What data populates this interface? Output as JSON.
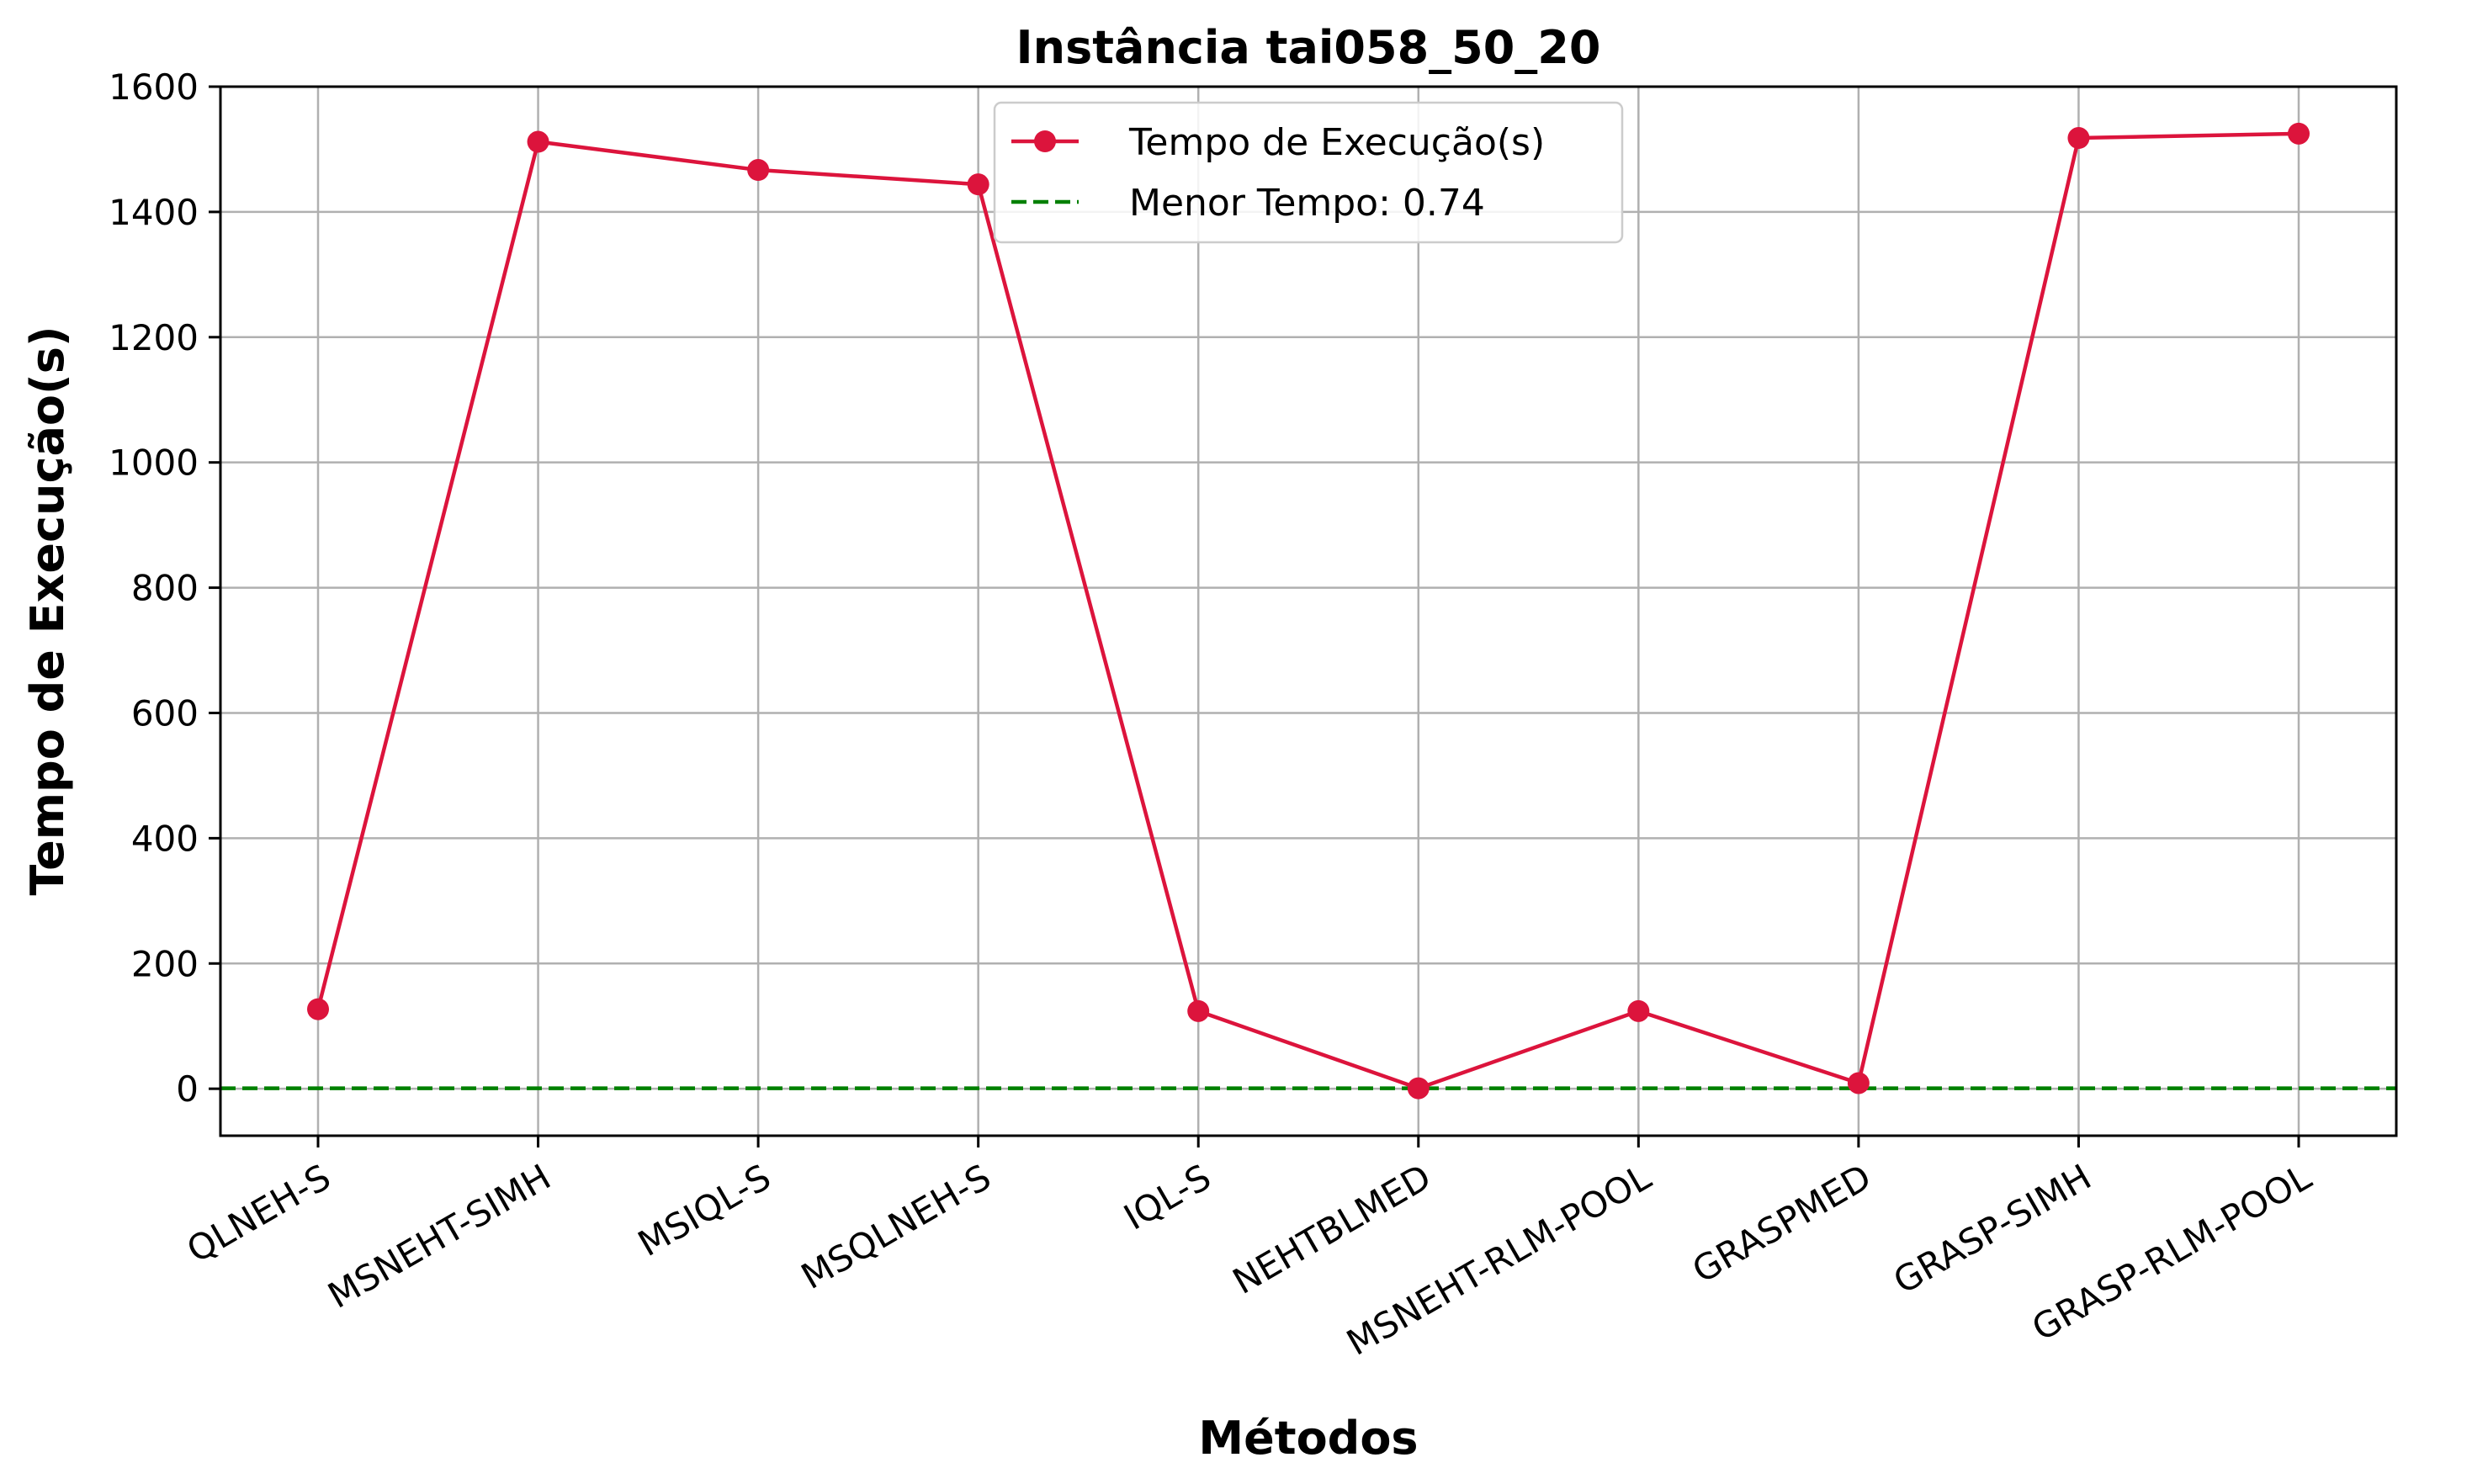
{
  "chart_data": {
    "type": "line",
    "title": "Instância tai058_50_20",
    "xlabel": "Métodos",
    "ylabel": "Tempo de Execução(s)",
    "categories": [
      "QLNEH-S",
      "MSNEHT-SIMH",
      "MSIQL-S",
      "MSQLNEH-S",
      "IQL-S",
      "NEHTBLMED",
      "MSNEHT-RLM-POOL",
      "GRASPMED",
      "GRASP-SIMH",
      "GRASP-RLM-POOL"
    ],
    "series": [
      {
        "name": "Tempo de Execução(s)",
        "values": [
          127,
          1512,
          1467,
          1444,
          124,
          0.74,
          124,
          9,
          1518,
          1525
        ],
        "color": "#dc143c",
        "marker": "circle"
      }
    ],
    "reference_lines": [
      {
        "name": "Menor Tempo: 0.74",
        "value": 0.74,
        "color": "#008000",
        "style": "dashed"
      }
    ],
    "ylim": [
      -75,
      1600
    ],
    "yticks": [
      0,
      200,
      400,
      600,
      800,
      1000,
      1200,
      1400,
      1600
    ],
    "grid": true,
    "legend_position": "top-center",
    "xtick_rotation": 30
  }
}
